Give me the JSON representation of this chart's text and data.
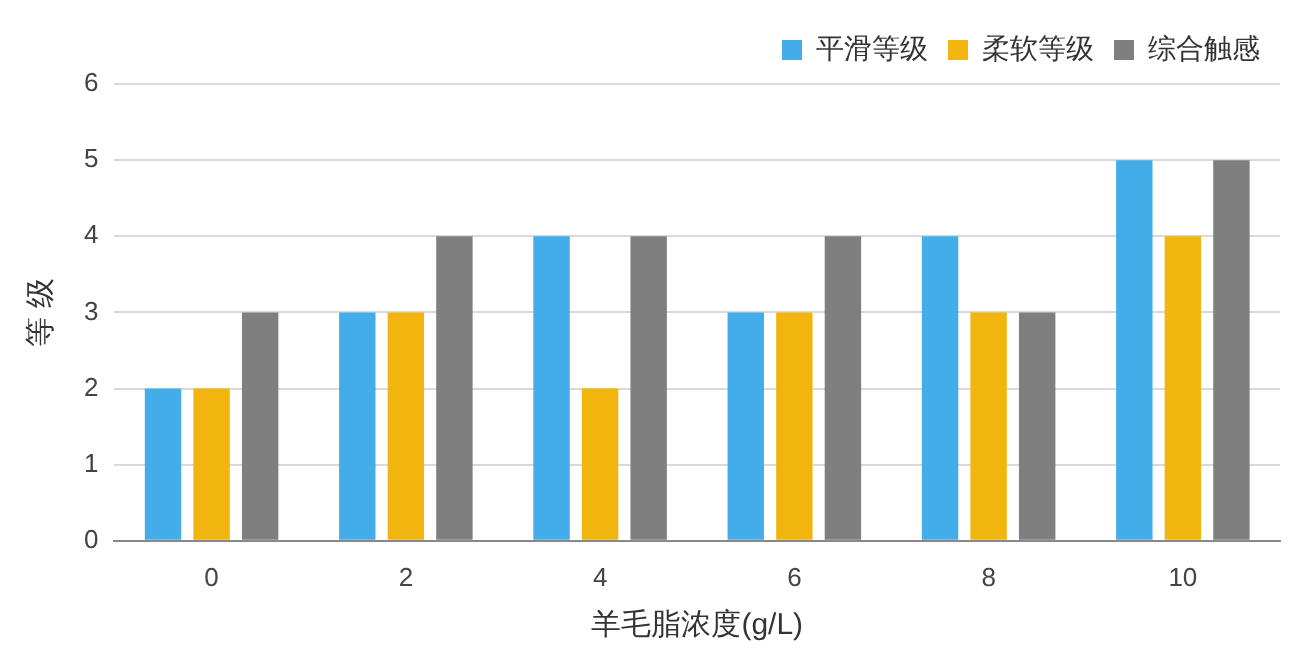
{
  "chart_data": {
    "type": "bar",
    "xlabel": "羊毛脂浓度(g/L)",
    "ylabel": "等 级",
    "categories": [
      "0",
      "2",
      "4",
      "6",
      "8",
      "10"
    ],
    "series": [
      {
        "name": "平滑等级",
        "color": "#42ade8",
        "values": [
          2,
          3,
          4,
          3,
          4,
          5
        ]
      },
      {
        "name": "柔软等级",
        "color": "#f2b50f",
        "values": [
          2,
          3,
          2,
          3,
          3,
          4
        ]
      },
      {
        "name": "综合触感",
        "color": "#7f7f7f",
        "values": [
          3,
          4,
          4,
          4,
          3,
          5
        ]
      }
    ],
    "ylim": [
      0,
      6
    ],
    "yticks": [
      0,
      1,
      2,
      3,
      4,
      5,
      6
    ],
    "grid": "y",
    "legend": "top right"
  }
}
